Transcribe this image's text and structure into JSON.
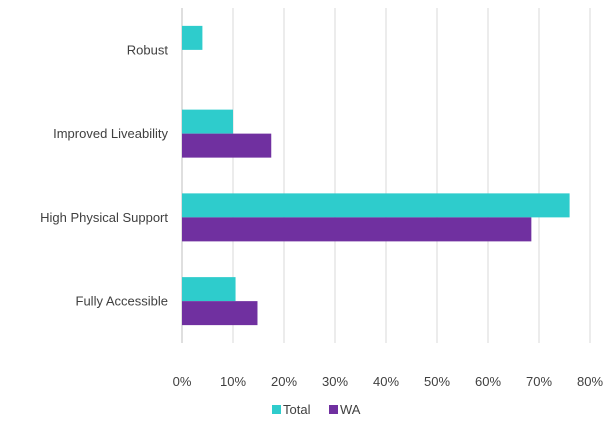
{
  "chart_data": {
    "type": "bar",
    "orientation": "horizontal",
    "categories": [
      "Robust",
      "Improved Liveability",
      "High Physical Support",
      "Fully Accessible"
    ],
    "series": [
      {
        "name": "Total",
        "color": "#2ECCCC",
        "values": [
          0.04,
          0.1,
          0.76,
          0.105
        ]
      },
      {
        "name": "WA",
        "color": "#7030A0",
        "values": [
          0.0,
          0.175,
          0.685,
          0.148
        ]
      }
    ],
    "xlim": [
      0,
      0.8
    ],
    "x_ticks": [
      0,
      0.1,
      0.2,
      0.3,
      0.4,
      0.5,
      0.6,
      0.7,
      0.8
    ],
    "x_tick_labels": [
      "0%",
      "10%",
      "20%",
      "30%",
      "40%",
      "50%",
      "60%",
      "70%",
      "80%"
    ],
    "grid": "vertical",
    "legend_position": "bottom",
    "title": "",
    "xlabel": "",
    "ylabel": ""
  }
}
